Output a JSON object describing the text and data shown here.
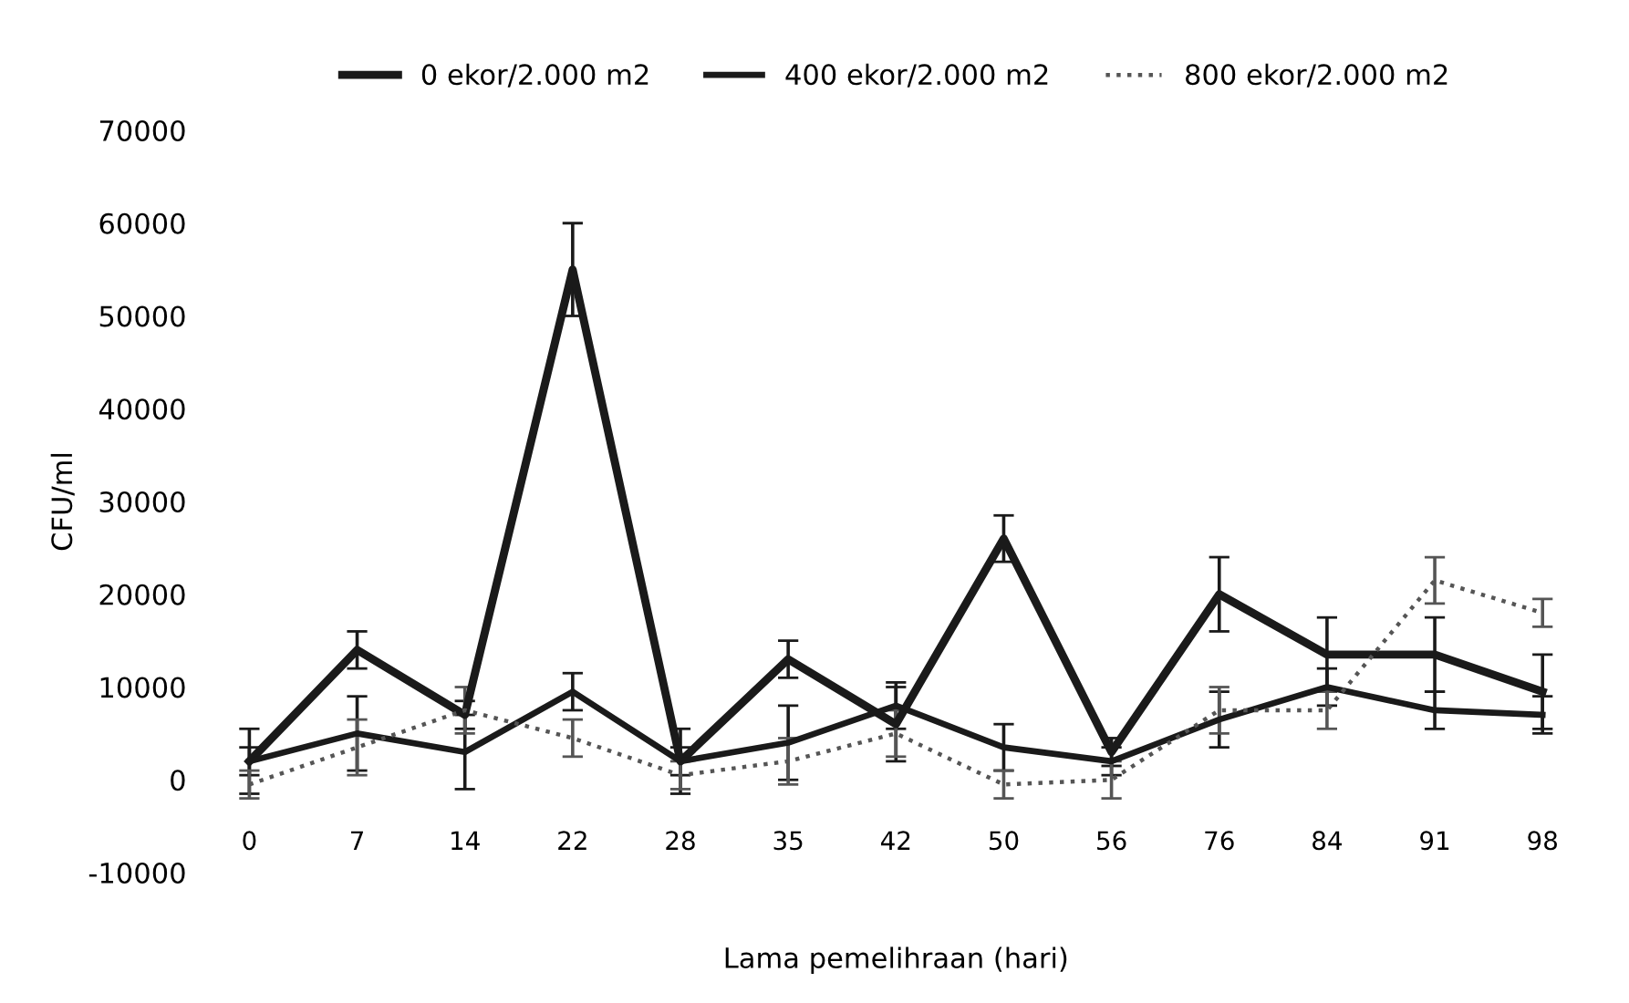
{
  "chart_data": {
    "type": "line",
    "xlabel": "Lama pemelihraan (hari)",
    "ylabel": "CFU/ml",
    "categories": [
      "0",
      "7",
      "14",
      "22",
      "28",
      "35",
      "42",
      "50",
      "56",
      "76",
      "84",
      "91",
      "98"
    ],
    "ylim": [
      -10000,
      70000
    ],
    "yticks": [
      -10000,
      0,
      10000,
      20000,
      30000,
      40000,
      50000,
      60000,
      70000
    ],
    "grid": false,
    "legend": "top",
    "marker": "none",
    "series": [
      {
        "name": "0 ekor/2.000 m2",
        "color": "#1a1a1a",
        "line_style": "solid",
        "values": [
          2000,
          14000,
          7000,
          55000,
          2000,
          13000,
          6000,
          26000,
          3000,
          20000,
          13500,
          13500,
          9500
        ],
        "errors": [
          1500,
          2000,
          1500,
          5000,
          3500,
          2000,
          4000,
          2500,
          1500,
          4000,
          4000,
          4000,
          4000
        ]
      },
      {
        "name": "400 ekor/2.000 m2",
        "color": "#1a1a1a",
        "line_style": "solid",
        "values": [
          2000,
          5000,
          3000,
          9500,
          2000,
          4000,
          8000,
          3500,
          2000,
          6500,
          10000,
          7500,
          7000
        ],
        "errors": [
          3500,
          4000,
          4000,
          2000,
          1500,
          4000,
          2500,
          2500,
          1500,
          3000,
          2000,
          2000,
          2000
        ]
      },
      {
        "name": "800 ekor/2.000 m2",
        "color": "#555555",
        "line_style": "dotted",
        "values": [
          -500,
          3500,
          7500,
          4500,
          500,
          2000,
          5000,
          -500,
          0,
          7500,
          7500,
          21500,
          18000
        ],
        "errors": [
          1500,
          3000,
          2500,
          2000,
          1500,
          2500,
          2500,
          1500,
          2000,
          2500,
          2000,
          2500,
          1500
        ]
      }
    ]
  }
}
